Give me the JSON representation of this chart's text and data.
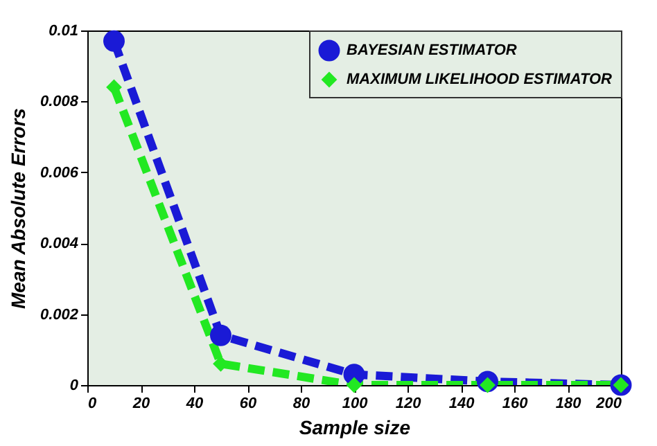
{
  "chart_data": {
    "type": "line",
    "xlabel": "Sample size",
    "ylabel": "Mean Absolute Errors",
    "x": [
      10,
      50,
      100,
      150,
      200
    ],
    "series": [
      {
        "name": "BAYESIAN ESTIMATOR",
        "color": "#1a1ad6",
        "marker": "circle",
        "line_style": "dashed",
        "values": [
          0.0097,
          0.0014,
          0.0003,
          0.0001,
          0.0
        ]
      },
      {
        "name": "MAXIMUM LIKELIHOOD ESTIMATOR",
        "color": "#22e822",
        "marker": "diamond",
        "line_style": "dashed",
        "values": [
          0.0084,
          0.0006,
          0.0,
          0.0,
          0.0
        ]
      }
    ],
    "xlim": [
      0,
      200
    ],
    "xticks": [
      0,
      20,
      40,
      60,
      80,
      100,
      120,
      140,
      160,
      180,
      200
    ],
    "ylim": [
      0,
      0.01
    ],
    "yticks": [
      0,
      0.002,
      0.004,
      0.006,
      0.008,
      0.01
    ],
    "grid": false,
    "legend": "top right"
  }
}
